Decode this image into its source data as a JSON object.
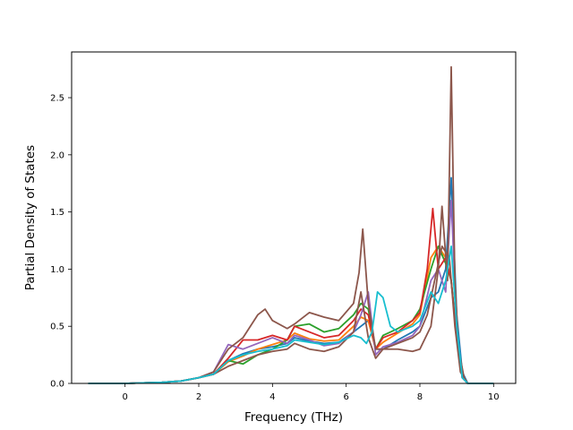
{
  "chart_data": {
    "type": "line",
    "title": "",
    "xlabel": "Frequency (THz)",
    "ylabel": "Partial Density of States",
    "xlim": [
      -1.45,
      10.6
    ],
    "ylim": [
      0,
      2.9
    ],
    "xticks": [
      0,
      2,
      4,
      6,
      8,
      10
    ],
    "xtick_labels": [
      "0",
      "2",
      "4",
      "6",
      "8",
      "10"
    ],
    "yticks": [
      0.0,
      0.5,
      1.0,
      1.5,
      2.0,
      2.5
    ],
    "ytick_labels": [
      "0.0",
      "0.5",
      "1.0",
      "1.5",
      "2.0",
      "2.5"
    ],
    "grid": false,
    "legend": "none",
    "series": [
      {
        "color": "#1f77b4",
        "x": [
          -1.0,
          0.0,
          1.0,
          1.5,
          2.0,
          2.4,
          2.8,
          3.2,
          3.6,
          4.0,
          4.4,
          4.6,
          5.0,
          5.4,
          5.8,
          6.2,
          6.4,
          6.6,
          6.8,
          7.0,
          7.4,
          7.8,
          8.0,
          8.3,
          8.5,
          8.7,
          8.85,
          9.0,
          9.15,
          9.3,
          10.0
        ],
        "values": [
          0.0,
          0.0,
          0.01,
          0.02,
          0.05,
          0.08,
          0.2,
          0.26,
          0.3,
          0.32,
          0.35,
          0.4,
          0.37,
          0.35,
          0.36,
          0.45,
          0.5,
          0.55,
          0.3,
          0.3,
          0.38,
          0.45,
          0.5,
          0.75,
          0.8,
          1.0,
          1.8,
          0.6,
          0.1,
          0.0,
          0.0
        ]
      },
      {
        "color": "#ff7f0e",
        "x": [
          -1.0,
          0.0,
          1.0,
          1.5,
          2.0,
          2.4,
          2.8,
          3.2,
          3.6,
          4.0,
          4.4,
          4.6,
          5.0,
          5.4,
          5.8,
          6.2,
          6.4,
          6.6,
          6.8,
          7.0,
          7.4,
          7.8,
          8.0,
          8.3,
          8.5,
          8.7,
          8.85,
          9.0,
          9.15,
          9.3,
          10.0
        ],
        "values": [
          0.0,
          0.0,
          0.01,
          0.02,
          0.05,
          0.08,
          0.19,
          0.24,
          0.3,
          0.34,
          0.38,
          0.44,
          0.39,
          0.37,
          0.38,
          0.5,
          0.58,
          0.55,
          0.3,
          0.36,
          0.44,
          0.52,
          0.6,
          1.1,
          1.2,
          1.1,
          0.9,
          0.4,
          0.05,
          0.0,
          0.0
        ]
      },
      {
        "color": "#2ca02c",
        "x": [
          -1.0,
          0.0,
          1.0,
          1.5,
          2.0,
          2.4,
          2.8,
          3.2,
          3.6,
          4.0,
          4.4,
          4.6,
          5.0,
          5.4,
          5.8,
          6.2,
          6.4,
          6.6,
          6.8,
          7.0,
          7.4,
          7.8,
          8.0,
          8.3,
          8.5,
          8.7,
          8.85,
          9.0,
          9.15,
          9.3,
          10.0
        ],
        "values": [
          0.0,
          0.0,
          0.01,
          0.02,
          0.05,
          0.08,
          0.2,
          0.17,
          0.25,
          0.3,
          0.38,
          0.5,
          0.52,
          0.45,
          0.48,
          0.6,
          0.7,
          0.65,
          0.3,
          0.42,
          0.48,
          0.55,
          0.65,
          1.0,
          1.2,
          1.05,
          0.9,
          0.4,
          0.05,
          0.0,
          0.0
        ]
      },
      {
        "color": "#d62728",
        "x": [
          -1.0,
          0.0,
          1.0,
          1.5,
          2.0,
          2.4,
          2.8,
          3.2,
          3.6,
          4.0,
          4.4,
          4.6,
          5.0,
          5.4,
          5.8,
          6.2,
          6.4,
          6.6,
          6.8,
          7.0,
          7.4,
          7.8,
          8.0,
          8.2,
          8.35,
          8.5,
          8.7,
          8.85,
          9.0,
          9.15,
          9.3,
          10.0
        ],
        "values": [
          0.0,
          0.0,
          0.01,
          0.02,
          0.05,
          0.08,
          0.22,
          0.38,
          0.38,
          0.42,
          0.38,
          0.5,
          0.45,
          0.4,
          0.42,
          0.55,
          0.65,
          0.6,
          0.3,
          0.4,
          0.45,
          0.55,
          0.62,
          1.0,
          1.53,
          1.0,
          1.1,
          0.9,
          0.4,
          0.05,
          0.0,
          0.0
        ]
      },
      {
        "color": "#9467bd",
        "x": [
          -1.0,
          0.0,
          1.0,
          1.5,
          2.0,
          2.4,
          2.8,
          3.2,
          3.6,
          4.0,
          4.4,
          4.6,
          5.0,
          5.4,
          5.8,
          6.2,
          6.4,
          6.6,
          6.8,
          7.0,
          7.4,
          7.8,
          8.0,
          8.3,
          8.5,
          8.7,
          8.85,
          9.0,
          9.15,
          9.3,
          10.0
        ],
        "values": [
          0.0,
          0.0,
          0.01,
          0.02,
          0.05,
          0.1,
          0.34,
          0.3,
          0.35,
          0.4,
          0.35,
          0.42,
          0.38,
          0.33,
          0.35,
          0.45,
          0.6,
          0.8,
          0.25,
          0.32,
          0.36,
          0.42,
          0.5,
          0.9,
          1.0,
          0.8,
          1.6,
          0.5,
          0.05,
          0.0,
          0.0
        ]
      },
      {
        "color": "#8c564b",
        "x": [
          -1.0,
          0.0,
          1.0,
          1.5,
          2.0,
          2.4,
          2.8,
          3.2,
          3.6,
          3.8,
          4.0,
          4.4,
          4.6,
          5.0,
          5.4,
          5.8,
          6.2,
          6.35,
          6.45,
          6.6,
          6.8,
          7.0,
          7.4,
          7.8,
          8.0,
          8.3,
          8.5,
          8.6,
          8.75,
          8.85,
          8.95,
          9.05,
          9.2,
          9.3,
          10.0
        ],
        "values": [
          0.0,
          0.0,
          0.01,
          0.02,
          0.05,
          0.1,
          0.3,
          0.4,
          0.6,
          0.65,
          0.55,
          0.48,
          0.52,
          0.62,
          0.58,
          0.55,
          0.7,
          0.97,
          1.35,
          0.7,
          0.3,
          0.3,
          0.3,
          0.28,
          0.3,
          0.5,
          1.0,
          1.55,
          0.9,
          2.77,
          0.9,
          0.3,
          0.05,
          0.0,
          0.0
        ]
      },
      {
        "color": "#8c564b",
        "x": [
          -1.0,
          0.0,
          1.0,
          1.5,
          2.0,
          2.4,
          2.8,
          3.2,
          3.6,
          4.0,
          4.4,
          4.6,
          5.0,
          5.4,
          5.8,
          6.2,
          6.4,
          6.6,
          6.8,
          7.0,
          7.4,
          7.8,
          8.0,
          8.2,
          8.4,
          8.6,
          8.8,
          8.95,
          9.1,
          9.3,
          10.0
        ],
        "values": [
          0.0,
          0.0,
          0.01,
          0.02,
          0.05,
          0.08,
          0.15,
          0.2,
          0.25,
          0.28,
          0.3,
          0.35,
          0.3,
          0.28,
          0.32,
          0.45,
          0.8,
          0.4,
          0.22,
          0.3,
          0.35,
          0.4,
          0.45,
          0.6,
          0.9,
          1.2,
          1.1,
          0.5,
          0.1,
          0.0,
          0.0
        ]
      },
      {
        "color": "#17becf",
        "x": [
          -1.0,
          0.0,
          1.0,
          1.5,
          2.0,
          2.4,
          2.8,
          3.2,
          3.6,
          4.0,
          4.4,
          4.6,
          5.0,
          5.4,
          5.8,
          6.2,
          6.4,
          6.55,
          6.7,
          6.85,
          7.0,
          7.2,
          7.4,
          7.8,
          8.0,
          8.3,
          8.5,
          8.7,
          8.85,
          9.0,
          9.15,
          9.3,
          10.0
        ],
        "values": [
          0.0,
          0.0,
          0.01,
          0.02,
          0.05,
          0.08,
          0.2,
          0.25,
          0.28,
          0.3,
          0.33,
          0.38,
          0.36,
          0.34,
          0.36,
          0.42,
          0.4,
          0.35,
          0.45,
          0.8,
          0.75,
          0.5,
          0.45,
          0.5,
          0.55,
          0.8,
          0.7,
          0.9,
          1.2,
          0.5,
          0.05,
          0.0,
          0.0
        ]
      }
    ]
  }
}
